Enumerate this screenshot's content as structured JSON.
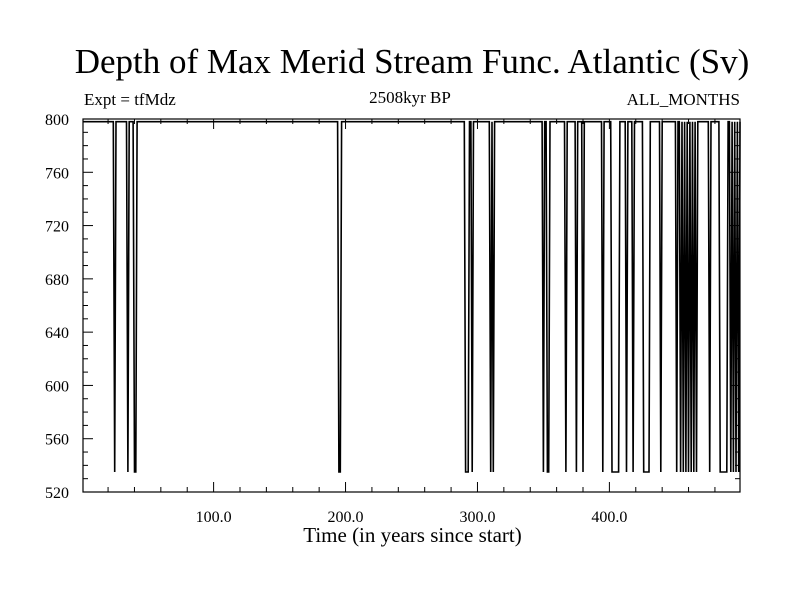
{
  "chart_data": {
    "type": "line",
    "title": "Depth of Max Merid Stream Func. Atlantic (Sv)",
    "subtitle": "2508kyr BP",
    "left_label": "Expt = tfMdz",
    "right_label": "ALL_MONTHS",
    "xlabel": "Time (in years since start)",
    "ylabel": "",
    "xlim": [
      1,
      499
    ],
    "ylim": [
      520,
      800
    ],
    "x_ticks": [
      100,
      200,
      300,
      400
    ],
    "x_tick_labels": [
      "100.0",
      "200.0",
      "300.0",
      "400.0"
    ],
    "x_minor_step": 20,
    "y_ticks": [
      520,
      560,
      600,
      640,
      680,
      720,
      760,
      800
    ],
    "y_tick_labels": [
      "520",
      "560",
      "600",
      "640",
      "680",
      "720",
      "760",
      "800"
    ],
    "y_minor_step": 10,
    "grid": false,
    "series": [
      {
        "name": "Depth of max meridional stream function",
        "x_start": 1,
        "x_end": 499,
        "default_value": 798,
        "dip_value": 535,
        "dip_years": [
          25,
          35,
          40,
          41,
          195,
          196,
          291,
          292,
          293,
          296,
          310,
          312,
          350,
          353,
          354,
          367,
          375,
          380,
          395,
          402,
          403,
          404,
          405,
          406,
          407,
          413,
          418,
          426,
          427,
          428,
          429,
          430,
          439,
          451,
          454,
          456,
          458,
          460,
          462,
          464,
          466,
          476,
          484,
          485,
          486,
          487,
          488,
          489,
          492,
          494,
          496,
          498
        ]
      }
    ]
  }
}
